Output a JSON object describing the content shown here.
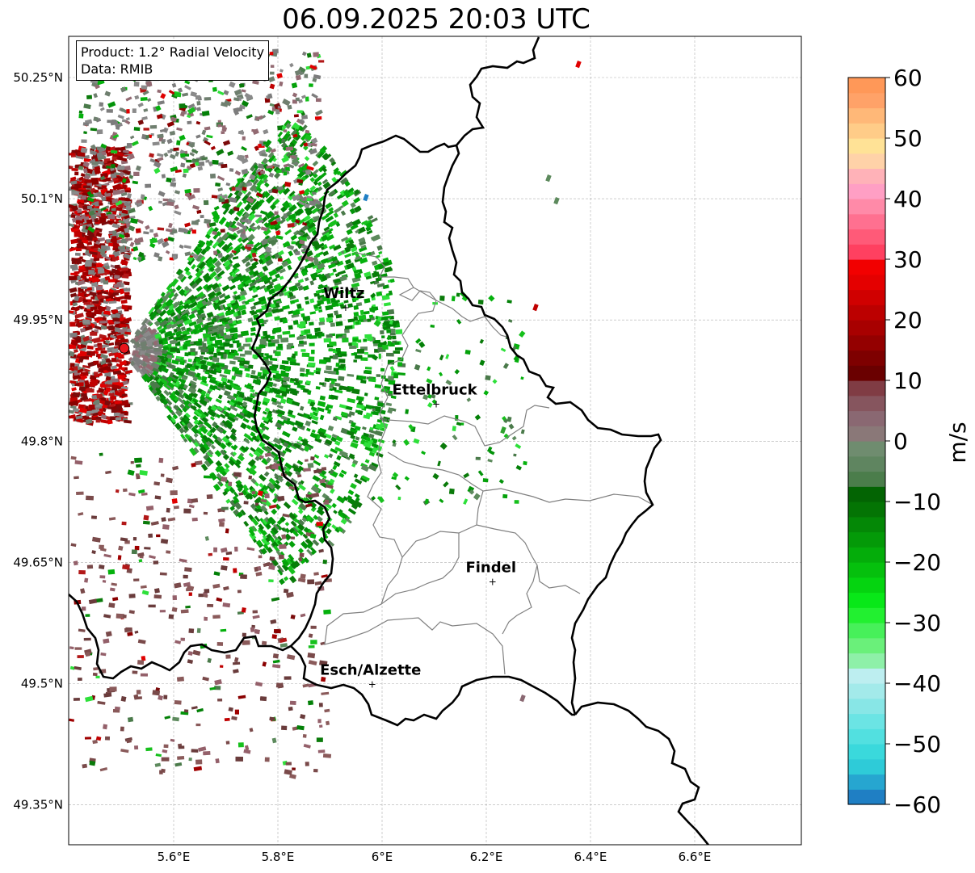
{
  "title": "06.09.2025 20:03 UTC",
  "info": {
    "product": "Product: 1.2° Radial Velocity",
    "source": "Data: RMIB"
  },
  "axes": {
    "lon_range": [
      5.4,
      6.8
    ],
    "lat_range": [
      49.3,
      50.3
    ],
    "xticks": [
      {
        "value": 5.6,
        "label": "5.6°E"
      },
      {
        "value": 5.8,
        "label": "5.8°E"
      },
      {
        "value": 6.0,
        "label": "6°E"
      },
      {
        "value": 6.2,
        "label": "6.2°E"
      },
      {
        "value": 6.4,
        "label": "6.4°E"
      },
      {
        "value": 6.6,
        "label": "6.6°E"
      }
    ],
    "yticks": [
      {
        "value": 49.35,
        "label": "49.35°N"
      },
      {
        "value": 49.5,
        "label": "49.5°N"
      },
      {
        "value": 49.65,
        "label": "49.65°N"
      },
      {
        "value": 49.8,
        "label": "49.8°N"
      },
      {
        "value": 49.95,
        "label": "49.95°N"
      },
      {
        "value": 50.1,
        "label": "50.1°N"
      },
      {
        "value": 50.25,
        "label": "50.25°N"
      }
    ],
    "grid": true
  },
  "radar_site": {
    "lon": 5.505,
    "lat": 49.915,
    "color": "#e8141b"
  },
  "cities": [
    {
      "name": "Wiltz",
      "lon": 5.93,
      "lat": 49.966
    },
    {
      "name": "Ettelbruck",
      "lon": 6.104,
      "lat": 49.847
    },
    {
      "name": "Findel",
      "lon": 6.212,
      "lat": 49.627
    },
    {
      "name": "Esch/Alzette",
      "lon": 5.981,
      "lat": 49.5
    }
  ],
  "colorbar": {
    "label": "m/s",
    "min": -60,
    "max": 60,
    "ticks": [
      -60,
      -50,
      -40,
      -30,
      -20,
      -10,
      0,
      10,
      20,
      30,
      40,
      50,
      60
    ],
    "tick_labels": [
      "−60",
      "−50",
      "−40",
      "−30",
      "−20",
      "−10",
      "0",
      "10",
      "20",
      "30",
      "40",
      "50",
      "60"
    ],
    "colors": [
      "#1f7fc4",
      "#26a6d0",
      "#2ecbd8",
      "#3ad9dc",
      "#52e0e0",
      "#6be4e4",
      "#88e6e6",
      "#a3eaea",
      "#bdeef0",
      "#8ef0a8",
      "#6af07a",
      "#47f05a",
      "#22f030",
      "#08e818",
      "#05d410",
      "#05c00d",
      "#04ad0a",
      "#049a08",
      "#048806",
      "#047404",
      "#036403",
      "#4b7d4b",
      "#5f8560",
      "#6f8c6f",
      "#8a7878",
      "#8a6872",
      "#86555e",
      "#803c44",
      "#6a0000",
      "#7e0000",
      "#940000",
      "#a80000",
      "#bc0000",
      "#d00000",
      "#e40000",
      "#f20000",
      "#ff4060",
      "#ff5a78",
      "#ff7090",
      "#ff8aa8",
      "#ff9fc4",
      "#ffb2b8",
      "#ffd2a8",
      "#ffe296",
      "#ffcc88",
      "#ffb878",
      "#ffa268",
      "#ff9858"
    ]
  }
}
